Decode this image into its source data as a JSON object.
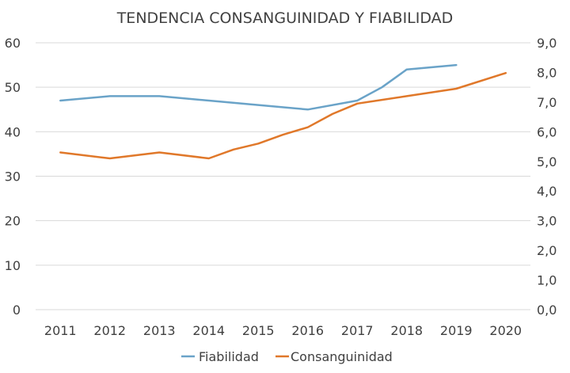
{
  "chart_data": {
    "type": "line",
    "title": "TENDENCIA CONSANGUINIDAD Y FIABILIDAD",
    "categories": [
      "2011",
      "2012",
      "2013",
      "2014",
      "2015",
      "2016",
      "2017",
      "2018",
      "2019",
      "2020"
    ],
    "left_axis": {
      "min": 0,
      "max": 60,
      "step": 10,
      "tick_labels": [
        "0",
        "10",
        "20",
        "30",
        "40",
        "50",
        "60"
      ]
    },
    "right_axis": {
      "min": 0,
      "max": 9,
      "step": 1,
      "tick_labels": [
        "0,0",
        "1,0",
        "2,0",
        "3,0",
        "4,0",
        "5,0",
        "6,0",
        "7,0",
        "8,0",
        "9,0"
      ]
    },
    "grid": true,
    "legend_position": "bottom",
    "series": [
      {
        "name": "Fiabilidad",
        "axis": "left",
        "color": "#6aa3c8",
        "points": [
          {
            "x": 2011,
            "y": 47
          },
          {
            "x": 2012,
            "y": 48
          },
          {
            "x": 2013,
            "y": 48
          },
          {
            "x": 2014,
            "y": 47
          },
          {
            "x": 2015,
            "y": 46
          },
          {
            "x": 2016,
            "y": 45
          },
          {
            "x": 2017,
            "y": 47
          },
          {
            "x": 2017.5,
            "y": 50
          },
          {
            "x": 2018,
            "y": 54
          },
          {
            "x": 2019,
            "y": 55
          }
        ]
      },
      {
        "name": "Consanguinidad",
        "axis": "right",
        "color": "#e0782a",
        "points": [
          {
            "x": 2011,
            "y": 5.3
          },
          {
            "x": 2012,
            "y": 5.1
          },
          {
            "x": 2013,
            "y": 5.3
          },
          {
            "x": 2014,
            "y": 5.1
          },
          {
            "x": 2014.5,
            "y": 5.4
          },
          {
            "x": 2015,
            "y": 5.6
          },
          {
            "x": 2015.5,
            "y": 5.9
          },
          {
            "x": 2016,
            "y": 6.15
          },
          {
            "x": 2016.5,
            "y": 6.6
          },
          {
            "x": 2017,
            "y": 6.95
          },
          {
            "x": 2018,
            "y": 7.2
          },
          {
            "x": 2019,
            "y": 7.45
          },
          {
            "x": 2020,
            "y": 7.98
          }
        ]
      }
    ]
  }
}
